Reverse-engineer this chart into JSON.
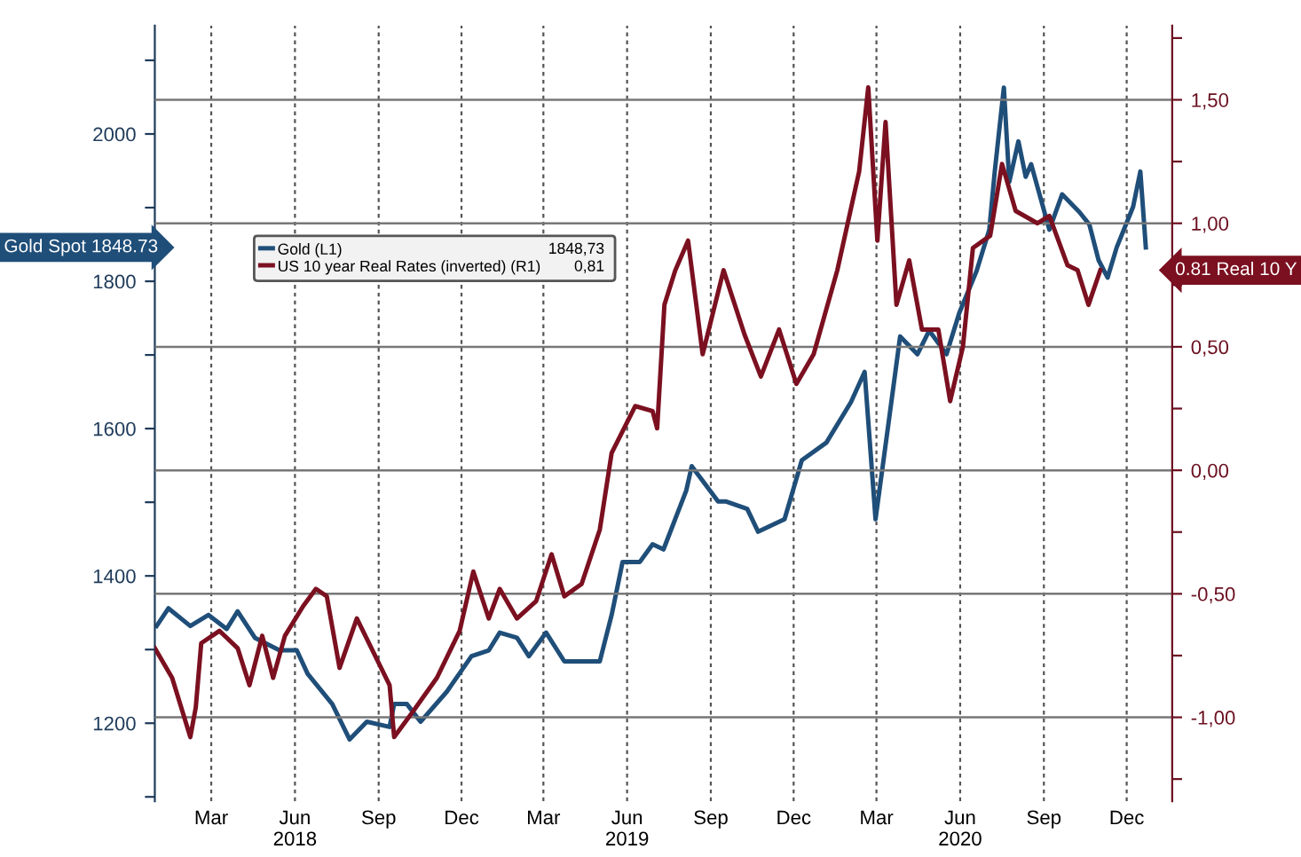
{
  "chart_data": {
    "type": "line",
    "xlim": [
      "2018-01-12",
      "2021-02-03"
    ],
    "xticks": [
      {
        "value": "2018-03-15",
        "label": "Mar"
      },
      {
        "value": "2018-06-15",
        "label": "Jun\n2018"
      },
      {
        "value": "2018-09-15",
        "label": "Sep"
      },
      {
        "value": "2018-12-15",
        "label": "Dec"
      },
      {
        "value": "2019-03-15",
        "label": "Mar"
      },
      {
        "value": "2019-06-15",
        "label": "Jun\n2019"
      },
      {
        "value": "2019-09-15",
        "label": "Sep"
      },
      {
        "value": "2019-12-15",
        "label": "Dec"
      },
      {
        "value": "2020-03-15",
        "label": "Mar"
      },
      {
        "value": "2020-06-15",
        "label": "Jun\n2020"
      },
      {
        "value": "2020-09-15",
        "label": "Sep"
      },
      {
        "value": "2020-12-15",
        "label": "Dec"
      }
    ],
    "ylim": [
      1094,
      2147
    ],
    "yticks": [
      {
        "value": 1100,
        "label": null
      },
      1200,
      {
        "value": 1300,
        "label": null
      },
      1400,
      {
        "value": 1500,
        "label": null
      },
      1600,
      {
        "value": 1700,
        "label": null
      },
      1800,
      {
        "value": 1900,
        "label": null
      },
      2000,
      {
        "value": 2100,
        "label": null
      }
    ],
    "y2lim": [
      -1.34,
      1.8
    ],
    "y2ticks": [
      {
        "value": -1.25,
        "label": null
      },
      {
        "value": -1.0,
        "label": "-1,00"
      },
      {
        "value": -0.75,
        "label": null
      },
      {
        "value": -0.5,
        "label": "-0,50"
      },
      {
        "value": -0.25,
        "label": null
      },
      {
        "value": 0.0,
        "label": "0,00"
      },
      {
        "value": 0.25,
        "label": null
      },
      {
        "value": 0.5,
        "label": "0,50"
      },
      {
        "value": 0.75,
        "label": null
      },
      {
        "value": 1.0,
        "label": "1,00"
      },
      {
        "value": 1.25,
        "label": null
      },
      {
        "value": 1.5,
        "label": "1,50"
      },
      {
        "value": 1.75,
        "label": null
      }
    ],
    "grid": true,
    "legend": "center left",
    "line_style": "solid",
    "series": [
      {
        "name": "Gold (L1)",
        "color": "#1f4e79",
        "axis": "y",
        "x": [
          "2018-01-14",
          "2018-01-27",
          "2018-02-20",
          "2018-03-12",
          "2018-04-01",
          "2018-04-13",
          "2018-05-02",
          "2018-05-29",
          "2018-06-17",
          "2018-06-29",
          "2018-07-26",
          "2018-08-14",
          "2018-09-02",
          "2018-09-27",
          "2018-10-02",
          "2018-10-16",
          "2018-10-31",
          "2018-11-29",
          "2018-12-26",
          "2019-01-14",
          "2019-01-26",
          "2019-02-14",
          "2019-02-27",
          "2019-03-18",
          "2019-04-07",
          "2019-04-26",
          "2019-05-16",
          "2019-05-29",
          "2019-06-10",
          "2019-06-29",
          "2019-07-13",
          "2019-07-25",
          "2019-08-19",
          "2019-08-25",
          "2019-09-23",
          "2019-10-02",
          "2019-10-25",
          "2019-11-06",
          "2019-12-05",
          "2019-12-24",
          "2020-01-20",
          "2020-02-16",
          "2020-03-02",
          "2020-03-14",
          "2020-03-28",
          "2020-04-10",
          "2020-04-29",
          "2020-05-12",
          "2020-05-31",
          "2020-06-14",
          "2020-07-03",
          "2020-07-17",
          "2020-07-23",
          "2020-08-02",
          "2020-08-08",
          "2020-08-18",
          "2020-08-26",
          "2020-09-01",
          "2020-09-21",
          "2020-10-05",
          "2020-10-24",
          "2020-11-04",
          "2020-11-14",
          "2020-11-24",
          "2020-12-04",
          "2020-12-22",
          "2020-12-30",
          "2021-01-05"
        ],
        "values": [
          1332,
          1356,
          1332,
          1347,
          1328,
          1352,
          1316,
          1299,
          1299,
          1267,
          1226,
          1178,
          1202,
          1195,
          1226,
          1226,
          1202,
          1243,
          1291,
          1299,
          1323,
          1316,
          1291,
          1323,
          1284,
          1284,
          1284,
          1347,
          1419,
          1419,
          1443,
          1436,
          1516,
          1549,
          1501,
          1501,
          1491,
          1460,
          1477,
          1557,
          1581,
          1636,
          1677,
          1477,
          1605,
          1725,
          1701,
          1733,
          1701,
          1757,
          1814,
          1870,
          1949,
          2063,
          1935,
          1990,
          1942,
          1959,
          1870,
          1918,
          1894,
          1877,
          1829,
          1805,
          1846,
          1901,
          1949,
          1846
        ]
      },
      {
        "name": "US 10 year Real Rates (inverted) (R1)",
        "color": "#7b1020",
        "axis": "y2",
        "x": [
          "2018-01-12",
          "2018-01-31",
          "2018-02-20",
          "2018-02-26",
          "2018-03-04",
          "2018-03-24",
          "2018-04-13",
          "2018-04-26",
          "2018-05-10",
          "2018-05-22",
          "2018-06-04",
          "2018-06-24",
          "2018-07-08",
          "2018-07-20",
          "2018-08-03",
          "2018-08-22",
          "2018-09-27",
          "2018-10-02",
          "2018-10-22",
          "2018-11-18",
          "2018-12-13",
          "2018-12-28",
          "2019-01-14",
          "2019-01-26",
          "2019-02-14",
          "2019-03-07",
          "2019-03-24",
          "2019-04-07",
          "2019-04-26",
          "2019-05-16",
          "2019-05-29",
          "2019-06-24",
          "2019-07-13",
          "2019-07-18",
          "2019-07-26",
          "2019-08-07",
          "2019-08-21",
          "2019-09-06",
          "2019-09-29",
          "2019-10-22",
          "2019-11-09",
          "2019-11-29",
          "2019-12-18",
          "2020-01-06",
          "2020-02-01",
          "2020-02-25",
          "2020-03-06",
          "2020-03-16",
          "2020-03-25",
          "2020-04-06",
          "2020-04-20",
          "2020-05-04",
          "2020-05-22",
          "2020-06-04",
          "2020-06-18",
          "2020-06-29",
          "2020-07-18",
          "2020-07-31",
          "2020-08-15",
          "2020-09-08",
          "2020-09-21",
          "2020-10-11",
          "2020-10-22",
          "2020-11-03",
          "2020-11-16"
        ],
        "values": [
          -0.72,
          -0.84,
          -1.08,
          -0.96,
          -0.7,
          -0.65,
          -0.72,
          -0.87,
          -0.67,
          -0.84,
          -0.67,
          -0.55,
          -0.48,
          -0.51,
          -0.8,
          -0.6,
          -0.87,
          -1.08,
          -0.98,
          -0.84,
          -0.65,
          -0.41,
          -0.6,
          -0.48,
          -0.6,
          -0.53,
          -0.34,
          -0.51,
          -0.46,
          -0.24,
          0.07,
          0.26,
          0.24,
          0.17,
          0.67,
          0.81,
          0.93,
          0.47,
          0.81,
          0.55,
          0.38,
          0.57,
          0.35,
          0.47,
          0.81,
          1.21,
          1.55,
          0.93,
          1.41,
          0.67,
          0.85,
          0.57,
          0.57,
          0.28,
          0.5,
          0.9,
          0.95,
          1.24,
          1.05,
          1.0,
          1.03,
          0.83,
          0.81,
          0.67,
          0.81
        ]
      }
    ],
    "annotations": [
      "Gold Spot 1848.73",
      "0.81 Real 10 Y",
      "1848,73",
      "0,81"
    ]
  }
}
